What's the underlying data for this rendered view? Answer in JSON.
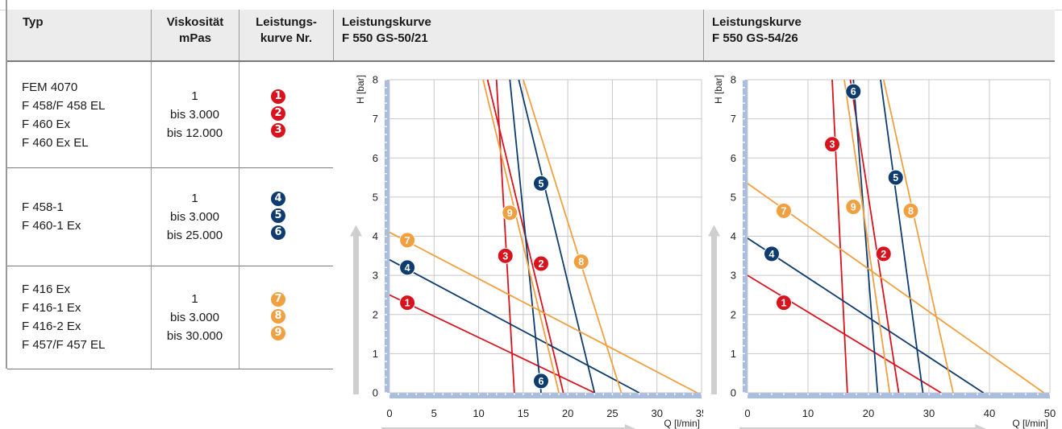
{
  "colors": {
    "red": "#d7141e",
    "blue": "#0e3c6e",
    "orange": "#f0a040",
    "grid": "#c8c8c8",
    "axisbar": "#a9bde0",
    "arrow": "#cfcfcf"
  },
  "table": {
    "headers": {
      "typ": "Typ",
      "visk1": "Viskosität",
      "visk2": "mPas",
      "lk1": "Leistungs-",
      "lk2": "kurve Nr."
    },
    "rows": [
      {
        "types": [
          "FEM 4070",
          "F 458/F 458 EL",
          "F 460 Ex",
          "F 460 Ex EL"
        ],
        "visc": [
          "1",
          "bis 3.000",
          "bis 12.000"
        ],
        "curves": [
          "1",
          "2",
          "3"
        ],
        "color": "red"
      },
      {
        "types": [
          "F 458-1",
          "F 460-1 Ex"
        ],
        "visc": [
          "1",
          "bis 3.000",
          "bis 25.000"
        ],
        "curves": [
          "4",
          "5",
          "6"
        ],
        "color": "blue"
      },
      {
        "types": [
          "F 416 Ex",
          "F 416-1 Ex",
          "F 416-2 Ex",
          "F 457/F 457 EL"
        ],
        "visc": [
          "1",
          "bis 3.000",
          "bis 30.000"
        ],
        "curves": [
          "7",
          "8",
          "9"
        ],
        "color": "orange"
      }
    ]
  },
  "chart_data": [
    {
      "type": "line",
      "title": "Leistungskurve",
      "subtitle": "F 550 GS-50/21",
      "xlabel": "Q [l/min]",
      "ylabel": "H [bar]",
      "xlim": [
        0,
        35
      ],
      "ylim": [
        0,
        8
      ],
      "xticks": [
        0,
        5,
        10,
        15,
        20,
        25,
        30,
        35
      ],
      "yticks": [
        0,
        1,
        2,
        3,
        4,
        5,
        6,
        7,
        8
      ],
      "grid": true,
      "series": [
        {
          "name": "1",
          "color": "red",
          "points": [
            [
              0,
              2.5
            ],
            [
              23,
              0
            ]
          ],
          "label_at": [
            2,
            2.3
          ]
        },
        {
          "name": "2",
          "color": "red",
          "points": [
            [
              11,
              8
            ],
            [
              19.5,
              0
            ]
          ],
          "label_at": [
            17,
            3.3
          ]
        },
        {
          "name": "3",
          "color": "red",
          "points": [
            [
              12,
              8
            ],
            [
              14,
              0
            ]
          ],
          "label_at": [
            13,
            3.5
          ]
        },
        {
          "name": "4",
          "color": "blue",
          "points": [
            [
              0,
              3.4
            ],
            [
              28,
              0
            ]
          ],
          "label_at": [
            2,
            3.2
          ]
        },
        {
          "name": "5",
          "color": "blue",
          "points": [
            [
              14.5,
              8
            ],
            [
              23,
              0
            ]
          ],
          "label_at": [
            17,
            5.35
          ]
        },
        {
          "name": "6",
          "color": "blue",
          "points": [
            [
              13.5,
              8
            ],
            [
              17,
              0
            ]
          ],
          "label_at": [
            17,
            0.3
          ]
        },
        {
          "name": "7",
          "color": "orange",
          "points": [
            [
              0,
              4.1
            ],
            [
              34.5,
              0
            ]
          ],
          "label_at": [
            2,
            3.9
          ]
        },
        {
          "name": "8",
          "color": "orange",
          "points": [
            [
              15,
              8
            ],
            [
              26,
              0
            ]
          ],
          "label_at": [
            21.5,
            3.35
          ]
        },
        {
          "name": "9",
          "color": "orange",
          "points": [
            [
              10.5,
              8
            ],
            [
              19,
              0
            ]
          ],
          "label_at": [
            13.5,
            4.6
          ]
        }
      ]
    },
    {
      "type": "line",
      "title": "Leistungskurve",
      "subtitle": "F 550 GS-54/26",
      "xlabel": "Q [l/min]",
      "ylabel": "H [bar]",
      "xlim": [
        0,
        50
      ],
      "ylim": [
        0,
        8
      ],
      "xticks": [
        0,
        10,
        20,
        30,
        40,
        50
      ],
      "yticks": [
        0,
        1,
        2,
        3,
        4,
        5,
        6,
        7,
        8
      ],
      "grid": true,
      "series": [
        {
          "name": "1",
          "color": "red",
          "points": [
            [
              0,
              3
            ],
            [
              32,
              0
            ]
          ],
          "label_at": [
            6,
            2.3
          ]
        },
        {
          "name": "2",
          "color": "red",
          "points": [
            [
              17,
              8
            ],
            [
              25,
              0
            ]
          ],
          "label_at": [
            22.5,
            3.55
          ]
        },
        {
          "name": "3",
          "color": "red",
          "points": [
            [
              14,
              8
            ],
            [
              16.5,
              0
            ]
          ],
          "label_at": [
            14,
            6.35
          ]
        },
        {
          "name": "4",
          "color": "blue",
          "points": [
            [
              0,
              3.95
            ],
            [
              39,
              0
            ]
          ],
          "label_at": [
            4,
            3.55
          ]
        },
        {
          "name": "5",
          "color": "blue",
          "points": [
            [
              22,
              8
            ],
            [
              29,
              0
            ]
          ],
          "label_at": [
            24.5,
            5.5
          ]
        },
        {
          "name": "6",
          "color": "blue",
          "points": [
            [
              17.5,
              8
            ],
            [
              21.5,
              0
            ]
          ],
          "label_at": [
            17.5,
            7.7
          ]
        },
        {
          "name": "7",
          "color": "orange",
          "points": [
            [
              0,
              5.35
            ],
            [
              49,
              0
            ]
          ],
          "label_at": [
            6,
            4.65
          ]
        },
        {
          "name": "8",
          "color": "orange",
          "points": [
            [
              22.5,
              8
            ],
            [
              34,
              0
            ]
          ],
          "label_at": [
            27,
            4.65
          ]
        },
        {
          "name": "9",
          "color": "orange",
          "points": [
            [
              16,
              8
            ],
            [
              23.5,
              0
            ]
          ],
          "label_at": [
            17.5,
            4.75
          ]
        }
      ]
    }
  ]
}
